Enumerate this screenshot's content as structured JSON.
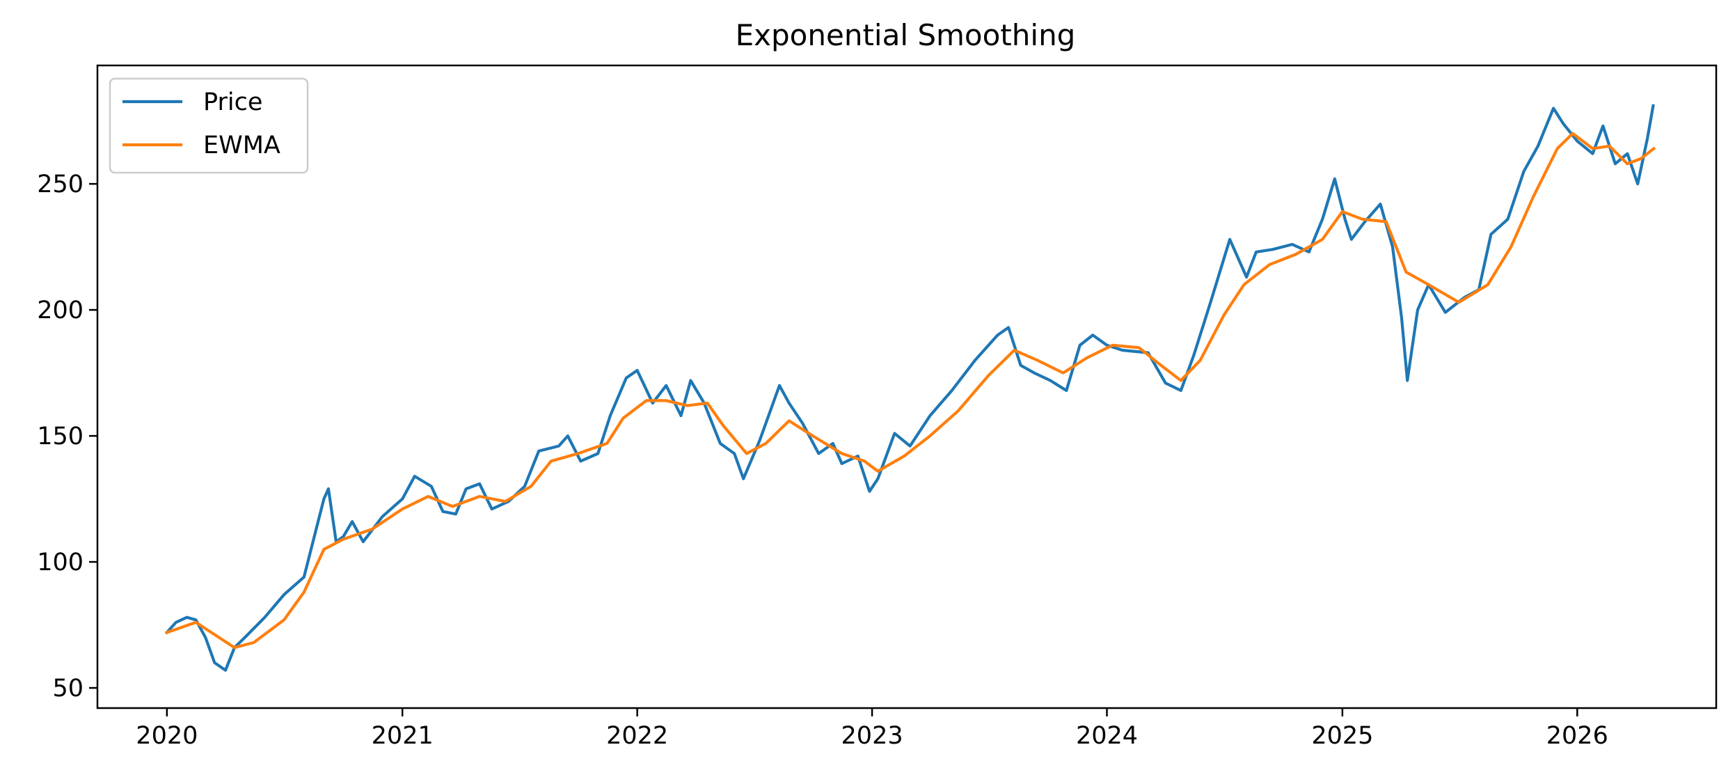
{
  "chart_data": {
    "type": "line",
    "title": "Exponential Smoothing",
    "xlabel": "",
    "ylabel": "",
    "x_tick_labels": [
      "2020",
      "2021",
      "2022",
      "2023",
      "2024",
      "2025",
      "2026"
    ],
    "y_tick_labels": [
      "50",
      "100",
      "150",
      "200",
      "250"
    ],
    "x_range": [
      "2019-09-15",
      "2026-08-05"
    ],
    "ylim": [
      42,
      297
    ],
    "grid": false,
    "legend_position": "top-left",
    "series": [
      {
        "name": "Price",
        "color": "#1f77b4",
        "points": [
          [
            "2020-01-01",
            72
          ],
          [
            "2020-01-15",
            76
          ],
          [
            "2020-02-01",
            78
          ],
          [
            "2020-02-15",
            77
          ],
          [
            "2020-03-01",
            70
          ],
          [
            "2020-03-15",
            60
          ],
          [
            "2020-04-01",
            57
          ],
          [
            "2020-04-15",
            66
          ],
          [
            "2020-05-01",
            70
          ],
          [
            "2020-06-01",
            78
          ],
          [
            "2020-07-01",
            87
          ],
          [
            "2020-08-01",
            94
          ],
          [
            "2020-08-15",
            108
          ],
          [
            "2020-09-01",
            125
          ],
          [
            "2020-09-08",
            129
          ],
          [
            "2020-09-20",
            108
          ],
          [
            "2020-10-01",
            110
          ],
          [
            "2020-10-15",
            116
          ],
          [
            "2020-11-01",
            108
          ],
          [
            "2020-12-01",
            118
          ],
          [
            "2021-01-01",
            125
          ],
          [
            "2021-01-20",
            134
          ],
          [
            "2021-02-15",
            130
          ],
          [
            "2021-03-05",
            120
          ],
          [
            "2021-03-25",
            119
          ],
          [
            "2021-04-10",
            129
          ],
          [
            "2021-05-01",
            131
          ],
          [
            "2021-05-20",
            121
          ],
          [
            "2021-06-15",
            124
          ],
          [
            "2021-07-10",
            130
          ],
          [
            "2021-08-01",
            144
          ],
          [
            "2021-09-01",
            146
          ],
          [
            "2021-09-15",
            150
          ],
          [
            "2021-10-05",
            140
          ],
          [
            "2021-11-01",
            143
          ],
          [
            "2021-11-20",
            158
          ],
          [
            "2021-12-15",
            173
          ],
          [
            "2022-01-01",
            176
          ],
          [
            "2022-01-25",
            163
          ],
          [
            "2022-02-15",
            170
          ],
          [
            "2022-03-10",
            158
          ],
          [
            "2022-03-25",
            172
          ],
          [
            "2022-04-15",
            163
          ],
          [
            "2022-05-10",
            147
          ],
          [
            "2022-06-01",
            143
          ],
          [
            "2022-06-15",
            133
          ],
          [
            "2022-07-10",
            148
          ],
          [
            "2022-08-10",
            170
          ],
          [
            "2022-08-25",
            163
          ],
          [
            "2022-09-15",
            155
          ],
          [
            "2022-10-10",
            143
          ],
          [
            "2022-11-01",
            147
          ],
          [
            "2022-11-15",
            139
          ],
          [
            "2022-12-10",
            142
          ],
          [
            "2022-12-28",
            128
          ],
          [
            "2023-01-10",
            133
          ],
          [
            "2023-02-05",
            151
          ],
          [
            "2023-03-01",
            146
          ],
          [
            "2023-04-01",
            158
          ],
          [
            "2023-05-05",
            168
          ],
          [
            "2023-06-10",
            180
          ],
          [
            "2023-07-15",
            190
          ],
          [
            "2023-08-01",
            193
          ],
          [
            "2023-08-20",
            178
          ],
          [
            "2023-09-10",
            175
          ],
          [
            "2023-10-05",
            172
          ],
          [
            "2023-10-30",
            168
          ],
          [
            "2023-11-20",
            186
          ],
          [
            "2023-12-10",
            190
          ],
          [
            "2024-01-01",
            186
          ],
          [
            "2024-01-25",
            184
          ],
          [
            "2024-03-05",
            183
          ],
          [
            "2024-04-01",
            171
          ],
          [
            "2024-04-25",
            168
          ],
          [
            "2024-05-15",
            182
          ],
          [
            "2024-06-10",
            203
          ],
          [
            "2024-07-10",
            228
          ],
          [
            "2024-08-05",
            213
          ],
          [
            "2024-08-20",
            223
          ],
          [
            "2024-09-15",
            224
          ],
          [
            "2024-10-15",
            226
          ],
          [
            "2024-11-10",
            223
          ],
          [
            "2024-12-01",
            236
          ],
          [
            "2024-12-20",
            252
          ],
          [
            "2025-01-05",
            236
          ],
          [
            "2025-01-15",
            228
          ],
          [
            "2025-02-05",
            235
          ],
          [
            "2025-03-01",
            242
          ],
          [
            "2025-03-20",
            225
          ],
          [
            "2025-04-03",
            197
          ],
          [
            "2025-04-12",
            172
          ],
          [
            "2025-04-28",
            200
          ],
          [
            "2025-05-15",
            210
          ],
          [
            "2025-06-10",
            199
          ],
          [
            "2025-07-10",
            205
          ],
          [
            "2025-08-01",
            208
          ],
          [
            "2025-08-20",
            230
          ],
          [
            "2025-09-15",
            236
          ],
          [
            "2025-10-10",
            255
          ],
          [
            "2025-11-01",
            265
          ],
          [
            "2025-11-25",
            280
          ],
          [
            "2025-12-10",
            274
          ],
          [
            "2026-01-01",
            267
          ],
          [
            "2026-01-25",
            262
          ],
          [
            "2026-02-10",
            273
          ],
          [
            "2026-03-01",
            258
          ],
          [
            "2026-03-20",
            262
          ],
          [
            "2026-04-05",
            250
          ],
          [
            "2026-04-20",
            268
          ],
          [
            "2026-04-29",
            281
          ]
        ]
      },
      {
        "name": "EWMA",
        "color": "#ff7f0e",
        "points": [
          [
            "2020-01-01",
            72
          ],
          [
            "2020-02-15",
            76
          ],
          [
            "2020-03-10",
            72
          ],
          [
            "2020-04-15",
            66
          ],
          [
            "2020-05-15",
            68
          ],
          [
            "2020-07-01",
            77
          ],
          [
            "2020-08-01",
            88
          ],
          [
            "2020-09-01",
            105
          ],
          [
            "2020-10-01",
            109
          ],
          [
            "2020-11-15",
            113
          ],
          [
            "2021-01-01",
            121
          ],
          [
            "2021-02-10",
            126
          ],
          [
            "2021-03-20",
            122
          ],
          [
            "2021-05-01",
            126
          ],
          [
            "2021-06-10",
            124
          ],
          [
            "2021-07-20",
            130
          ],
          [
            "2021-08-20",
            140
          ],
          [
            "2021-10-01",
            143
          ],
          [
            "2021-11-15",
            147
          ],
          [
            "2021-12-10",
            157
          ],
          [
            "2022-01-15",
            164
          ],
          [
            "2022-02-15",
            164
          ],
          [
            "2022-03-20",
            162
          ],
          [
            "2022-04-20",
            163
          ],
          [
            "2022-05-15",
            154
          ],
          [
            "2022-06-20",
            143
          ],
          [
            "2022-07-20",
            147
          ],
          [
            "2022-08-25",
            156
          ],
          [
            "2022-10-01",
            150
          ],
          [
            "2022-11-15",
            143
          ],
          [
            "2022-12-20",
            140
          ],
          [
            "2023-01-10",
            136
          ],
          [
            "2023-02-20",
            142
          ],
          [
            "2023-04-01",
            150
          ],
          [
            "2023-05-15",
            160
          ],
          [
            "2023-07-01",
            174
          ],
          [
            "2023-08-10",
            184
          ],
          [
            "2023-09-15",
            180
          ],
          [
            "2023-10-25",
            175
          ],
          [
            "2023-12-01",
            181
          ],
          [
            "2024-01-10",
            186
          ],
          [
            "2024-02-20",
            185
          ],
          [
            "2024-03-25",
            178
          ],
          [
            "2024-04-25",
            172
          ],
          [
            "2024-05-25",
            180
          ],
          [
            "2024-07-01",
            198
          ],
          [
            "2024-08-01",
            210
          ],
          [
            "2024-09-10",
            218
          ],
          [
            "2024-10-20",
            222
          ],
          [
            "2024-12-01",
            228
          ],
          [
            "2025-01-01",
            239
          ],
          [
            "2025-02-01",
            236
          ],
          [
            "2025-03-10",
            235
          ],
          [
            "2025-04-10",
            215
          ],
          [
            "2025-05-15",
            210
          ],
          [
            "2025-07-01",
            203
          ],
          [
            "2025-08-15",
            210
          ],
          [
            "2025-09-20",
            225
          ],
          [
            "2025-10-25",
            245
          ],
          [
            "2025-12-01",
            264
          ],
          [
            "2025-12-25",
            270
          ],
          [
            "2026-01-25",
            264
          ],
          [
            "2026-02-20",
            265
          ],
          [
            "2026-03-20",
            258
          ],
          [
            "2026-04-10",
            260
          ],
          [
            "2026-04-30",
            264
          ]
        ]
      }
    ]
  }
}
